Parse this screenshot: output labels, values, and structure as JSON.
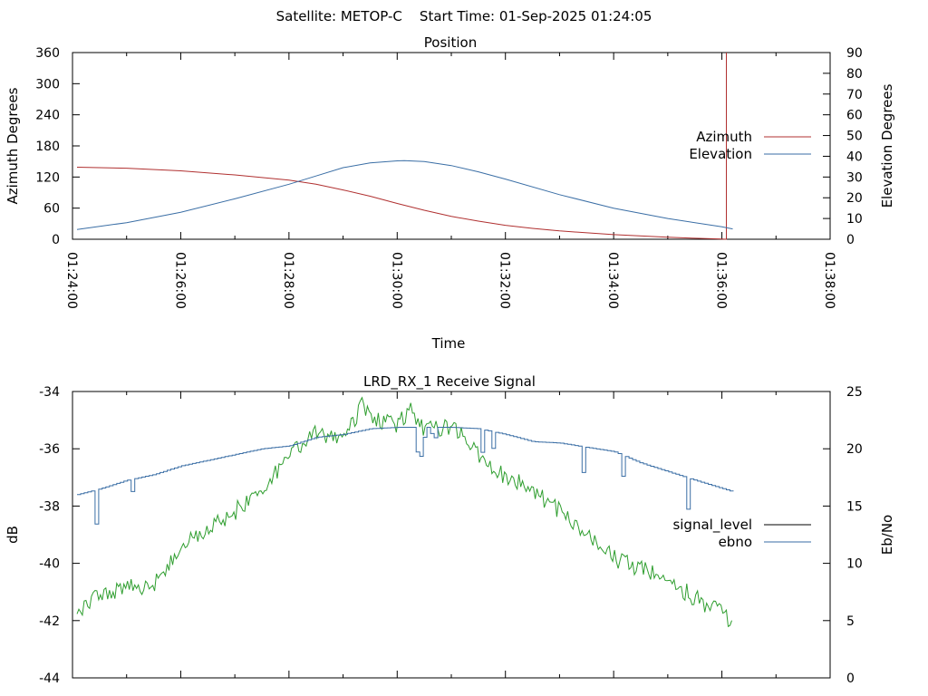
{
  "header": {
    "title": "Satellite: METOP-C    Start Time: 01-Sep-2025 01:24:05"
  },
  "chart_data": [
    {
      "type": "line",
      "title": "Position",
      "xlabel": "Time",
      "ylabel": "Azimuth Degrees",
      "y2label": "Elevation Degrees",
      "xlim": [
        "01:24:00",
        "01:38:00"
      ],
      "x_ticks": [
        "01:24:00",
        "01:26:00",
        "01:28:00",
        "01:30:00",
        "01:32:00",
        "01:34:00",
        "01:36:00",
        "01:38:00"
      ],
      "ylim": [
        0,
        360
      ],
      "y_ticks": [
        "0",
        "60",
        "120",
        "180",
        "240",
        "300",
        "360"
      ],
      "y2lim": [
        0,
        90
      ],
      "y2_ticks": [
        "0",
        "10",
        "20",
        "30",
        "40",
        "50",
        "60",
        "70",
        "80",
        "90"
      ],
      "legend": "right",
      "grid": false,
      "series": [
        {
          "name": "Azimuth",
          "axis": "y",
          "color": "#b03030",
          "x": [
            "01:24:05",
            "01:25:00",
            "01:26:00",
            "01:27:00",
            "01:28:00",
            "01:28:30",
            "01:29:00",
            "01:29:30",
            "01:30:00",
            "01:30:30",
            "01:31:00",
            "01:31:30",
            "01:32:00",
            "01:32:30",
            "01:33:00",
            "01:34:00",
            "01:35:00",
            "01:35:30",
            "01:36:00",
            "01:36:05",
            "01:36:05"
          ],
          "values": [
            139,
            137,
            132,
            124,
            114,
            106,
            95,
            83,
            69,
            56,
            44,
            35,
            27,
            21,
            16,
            9,
            4,
            2,
            0.5,
            0,
            360
          ]
        },
        {
          "name": "Elevation",
          "axis": "y2",
          "color": "#3a6ea5",
          "x": [
            "01:24:05",
            "01:25:00",
            "01:26:00",
            "01:27:00",
            "01:28:00",
            "01:28:30",
            "01:29:00",
            "01:29:30",
            "01:30:00",
            "01:30:08",
            "01:30:30",
            "01:31:00",
            "01:31:30",
            "01:32:00",
            "01:33:00",
            "01:34:00",
            "01:35:00",
            "01:36:00",
            "01:36:12"
          ],
          "values": [
            4.7,
            8,
            13,
            19.5,
            26.5,
            30.5,
            34.5,
            36.8,
            37.8,
            37.9,
            37.5,
            35.5,
            32.5,
            29,
            21.5,
            15,
            10,
            6,
            5
          ]
        }
      ]
    },
    {
      "type": "line",
      "title": "LRD_RX_1 Receive Signal",
      "xlabel": "",
      "ylabel": "dB",
      "y2label": "Eb/No",
      "xlim": [
        "01:24:00",
        "01:38:00"
      ],
      "ylim": [
        -44,
        -34
      ],
      "y_ticks": [
        "-44",
        "-42",
        "-40",
        "-38",
        "-36",
        "-34"
      ],
      "y2lim": [
        0,
        25
      ],
      "y2_ticks": [
        "0",
        "5",
        "10",
        "15",
        "20",
        "25"
      ],
      "legend": "right",
      "grid": false,
      "series": [
        {
          "name": "signal_level",
          "axis": "y",
          "color": "#000000",
          "x": [],
          "values": []
        },
        {
          "name": "ebno",
          "axis": "y2",
          "color": "#2f9e2f",
          "x": [
            "01:24:05",
            "01:24:30",
            "01:25:00",
            "01:25:30",
            "01:26:00",
            "01:26:30",
            "01:27:00",
            "01:27:30",
            "01:28:00",
            "01:28:30",
            "01:29:00",
            "01:29:20",
            "01:29:40",
            "01:30:00",
            "01:30:15",
            "01:30:30",
            "01:31:00",
            "01:31:30",
            "01:32:00",
            "01:32:30",
            "01:33:00",
            "01:33:30",
            "01:34:00",
            "01:34:30",
            "01:35:00",
            "01:35:30",
            "01:36:12"
          ],
          "values": [
            5.5,
            7.3,
            7.8,
            8.2,
            11.5,
            13,
            14.5,
            16.5,
            19.5,
            21.5,
            20.5,
            23.8,
            22.5,
            22,
            23.5,
            21.5,
            22,
            19.5,
            17.5,
            16.5,
            14.5,
            12.5,
            10.5,
            9.5,
            8.5,
            7,
            5
          ]
        },
        {
          "name": "ebno",
          "axis": "y",
          "color": "#3a6ea5",
          "x": [
            "01:24:05",
            "01:24:30",
            "01:25:00",
            "01:25:30",
            "01:26:00",
            "01:26:30",
            "01:27:00",
            "01:27:30",
            "01:28:00",
            "01:28:30",
            "01:29:00",
            "01:29:30",
            "01:30:00",
            "01:30:30",
            "01:31:00",
            "01:31:30",
            "01:32:00",
            "01:32:30",
            "01:33:00",
            "01:33:30",
            "01:34:00",
            "01:34:30",
            "01:35:00",
            "01:35:30",
            "01:36:12"
          ],
          "values": [
            -37.6,
            -37.4,
            -37.1,
            -36.9,
            -36.6,
            -36.4,
            -36.2,
            -36.0,
            -35.9,
            -35.6,
            -35.5,
            -35.3,
            -35.25,
            -35.25,
            -35.25,
            -35.3,
            -35.5,
            -35.75,
            -35.8,
            -35.95,
            -36.1,
            -36.5,
            -36.8,
            -37.1,
            -37.5
          ]
        }
      ]
    }
  ]
}
